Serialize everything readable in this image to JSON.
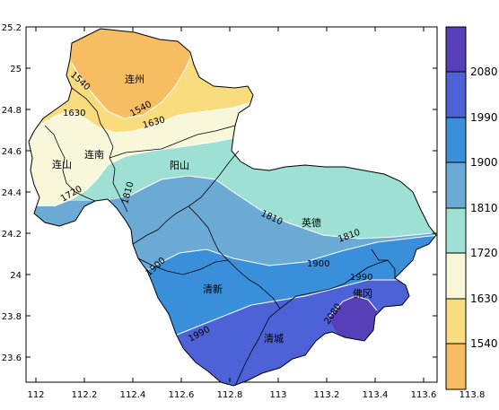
{
  "map": {
    "lat_ticks": [
      "25.2",
      "25",
      "24.8",
      "24.6",
      "24.4",
      "24.2",
      "24",
      "23.8",
      "23.6"
    ],
    "lon_ticks": [
      "112",
      "112.2",
      "112.4",
      "112.6",
      "112.8",
      "113",
      "113.2",
      "113.4",
      "113.6",
      "113.8"
    ],
    "places": [
      "连州",
      "连南",
      "连山",
      "阳山",
      "英德",
      "清新",
      "清城",
      "佛冈"
    ],
    "contour_labels": [
      "1540",
      "1540",
      "1630",
      "1630",
      "1720",
      "1810",
      "1810",
      "1810",
      "1900",
      "1900",
      "1990",
      "1990",
      "2080"
    ]
  },
  "colorbar": {
    "tick_labels": [
      "2080",
      "1990",
      "1900",
      "1810",
      "1720",
      "1630",
      "1540"
    ],
    "colors": [
      "#f7bd63",
      "#f9dc7e",
      "#f8f7d9",
      "#9fe0d5",
      "#6aaad4",
      "#3a8fdb",
      "#4d62d6",
      "#563fb9"
    ]
  }
}
